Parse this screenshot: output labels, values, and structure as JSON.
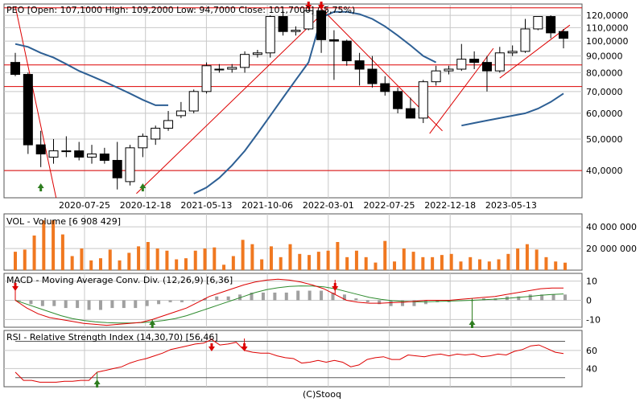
{
  "footer": "(C)Stooq",
  "colors": {
    "frame": "#555555",
    "grid": "#c8c8c8",
    "trend_red": "#dd0000",
    "ma_blue": "#2d5f94",
    "candle_up_fill": "#ffffff",
    "candle_down_fill": "#000000",
    "volume_bar": "#f07820",
    "macd_hist": "#a0a0a0",
    "macd_line": "#dd0000",
    "signal_line": "#2e8b2e",
    "rsi_line": "#dd0000",
    "rsi_band": "#5a5a5a",
    "arrow_up": "#2e7d1f",
    "arrow_down": "#dd0000"
  },
  "chart_data": [
    {
      "id": "price",
      "type": "candlestick",
      "legend": "PEO [Open: 107,1000  High: 109,2000  Low: 94,7000  Close: 101,7000] (-5,75%)",
      "scale": "log",
      "ylim": [
        33,
        130
      ],
      "ytick_labels": [
        "40,0000",
        "50,0000",
        "60,0000",
        "70,0000",
        "80,0000",
        "90,0000",
        "100,0000",
        "110,0000",
        "120,0000"
      ],
      "ytick_values": [
        40,
        50,
        60,
        70,
        80,
        90,
        100,
        110,
        120
      ],
      "xtick_labels": [
        "2020-07-25",
        "2020-12-18",
        "2021-05-13",
        "2021-10-06",
        "2022-03-01",
        "2022-07-25",
        "2022-12-18",
        "2023-05-13"
      ],
      "candles": [
        {
          "o": 86,
          "h": 92,
          "l": 78,
          "c": 79
        },
        {
          "o": 79,
          "h": 80,
          "l": 45,
          "c": 48
        },
        {
          "o": 48,
          "h": 53,
          "l": 41,
          "c": 45
        },
        {
          "o": 44,
          "h": 50,
          "l": 42,
          "c": 46
        },
        {
          "o": 46,
          "h": 51,
          "l": 44,
          "c": 46
        },
        {
          "o": 46,
          "h": 49,
          "l": 43,
          "c": 44
        },
        {
          "o": 44,
          "h": 48,
          "l": 42,
          "c": 45
        },
        {
          "o": 45,
          "h": 47,
          "l": 42,
          "c": 43
        },
        {
          "o": 43,
          "h": 49,
          "l": 35,
          "c": 38
        },
        {
          "o": 37,
          "h": 48,
          "l": 36,
          "c": 47
        },
        {
          "o": 47,
          "h": 52,
          "l": 44,
          "c": 51
        },
        {
          "o": 50,
          "h": 55,
          "l": 48,
          "c": 54
        },
        {
          "o": 54,
          "h": 61,
          "l": 53,
          "c": 57
        },
        {
          "o": 59,
          "h": 65,
          "l": 58,
          "c": 61
        },
        {
          "o": 61,
          "h": 71,
          "l": 60,
          "c": 70
        },
        {
          "o": 70,
          "h": 86,
          "l": 69,
          "c": 84
        },
        {
          "o": 82,
          "h": 85,
          "l": 80,
          "c": 82
        },
        {
          "o": 82,
          "h": 85,
          "l": 80,
          "c": 83
        },
        {
          "o": 83,
          "h": 93,
          "l": 80,
          "c": 91
        },
        {
          "o": 91,
          "h": 94,
          "l": 89,
          "c": 92
        },
        {
          "o": 92,
          "h": 120,
          "l": 89,
          "c": 119
        },
        {
          "o": 119,
          "h": 124,
          "l": 104,
          "c": 107
        },
        {
          "o": 107,
          "h": 111,
          "l": 104,
          "c": 108
        },
        {
          "o": 109,
          "h": 125,
          "l": 108,
          "c": 124
        },
        {
          "o": 124,
          "h": 126,
          "l": 92,
          "c": 101
        },
        {
          "o": 101,
          "h": 108,
          "l": 76,
          "c": 100
        },
        {
          "o": 100,
          "h": 101,
          "l": 84,
          "c": 87
        },
        {
          "o": 87,
          "h": 92,
          "l": 73,
          "c": 82
        },
        {
          "o": 82,
          "h": 90,
          "l": 72,
          "c": 74
        },
        {
          "o": 74,
          "h": 78,
          "l": 68,
          "c": 70
        },
        {
          "o": 70,
          "h": 72,
          "l": 60,
          "c": 62
        },
        {
          "o": 62,
          "h": 67,
          "l": 58,
          "c": 58
        },
        {
          "o": 58,
          "h": 76,
          "l": 56,
          "c": 75
        },
        {
          "o": 75,
          "h": 84,
          "l": 73,
          "c": 81
        },
        {
          "o": 81,
          "h": 84,
          "l": 79,
          "c": 82
        },
        {
          "o": 82,
          "h": 98,
          "l": 81,
          "c": 88
        },
        {
          "o": 88,
          "h": 93,
          "l": 82,
          "c": 86
        },
        {
          "o": 86,
          "h": 90,
          "l": 70,
          "c": 81
        },
        {
          "o": 81,
          "h": 96,
          "l": 80,
          "c": 92
        },
        {
          "o": 92,
          "h": 97,
          "l": 90,
          "c": 93
        },
        {
          "o": 93,
          "h": 117,
          "l": 92,
          "c": 109
        },
        {
          "o": 109,
          "h": 119,
          "l": 108,
          "c": 119
        },
        {
          "o": 119,
          "h": 120,
          "l": 102,
          "c": 106
        },
        {
          "o": 107,
          "h": 109,
          "l": 95,
          "c": 102
        }
      ],
      "moving_average": [
        {
          "i": 0,
          "v": 98
        },
        {
          "i": 1,
          "v": 96
        },
        {
          "i": 2,
          "v": 92
        },
        {
          "i": 3,
          "v": 89
        },
        {
          "i": 4,
          "v": 85
        },
        {
          "i": 5,
          "v": 81
        },
        {
          "i": 6,
          "v": 78
        },
        {
          "i": 7,
          "v": 75
        },
        {
          "i": 8,
          "v": 72
        },
        {
          "i": 9,
          "v": 69
        },
        {
          "i": 10,
          "v": 66
        },
        {
          "i": 11,
          "v": 63.5
        },
        {
          "i": 12,
          "v": 63.5
        },
        {
          "i": 14,
          "v": 34
        },
        {
          "i": 15,
          "v": 35.5
        },
        {
          "i": 16,
          "v": 38
        },
        {
          "i": 17,
          "v": 41.5
        },
        {
          "i": 18,
          "v": 46
        },
        {
          "i": 19,
          "v": 52
        },
        {
          "i": 20,
          "v": 59
        },
        {
          "i": 21,
          "v": 67
        },
        {
          "i": 22,
          "v": 76
        },
        {
          "i": 23,
          "v": 86
        },
        {
          "i": 24,
          "v": 118
        },
        {
          "i": 25,
          "v": 123
        },
        {
          "i": 26,
          "v": 123
        },
        {
          "i": 27,
          "v": 121
        },
        {
          "i": 28,
          "v": 117
        },
        {
          "i": 29,
          "v": 111
        },
        {
          "i": 30,
          "v": 104
        },
        {
          "i": 31,
          "v": 97
        },
        {
          "i": 32,
          "v": 90
        },
        {
          "i": 33,
          "v": 86
        },
        {
          "i": 35,
          "v": 55
        },
        {
          "i": 36,
          "v": 56
        },
        {
          "i": 37,
          "v": 57
        },
        {
          "i": 38,
          "v": 58
        },
        {
          "i": 39,
          "v": 59
        },
        {
          "i": 40,
          "v": 60
        },
        {
          "i": 41,
          "v": 62
        },
        {
          "i": 42,
          "v": 65
        },
        {
          "i": 43,
          "v": 69
        }
      ],
      "horizontal_lines": [
        126.5,
        84.5,
        72.5,
        40
      ],
      "arrows": [
        {
          "i": 2,
          "dir": "up"
        },
        {
          "i": 10,
          "dir": "up"
        },
        {
          "i": 23,
          "dir": "down"
        },
        {
          "i": 24,
          "dir": "down"
        }
      ]
    },
    {
      "id": "volume",
      "type": "bar",
      "legend": "VOL - Volume [6 908 429]",
      "ylim": [
        0,
        52000000
      ],
      "ytick_labels": [
        "20 000 000",
        "40 000 000"
      ],
      "ytick_values": [
        20000000,
        40000000
      ],
      "values": [
        17000000,
        19000000,
        32000000,
        46000000,
        46000000,
        33000000,
        13000000,
        20000000,
        9000000,
        11000000,
        19000000,
        9000000,
        16000000,
        22000000,
        26000000,
        20000000,
        18000000,
        10000000,
        11000000,
        18000000,
        20000000,
        21000000,
        5000000,
        13000000,
        28000000,
        24000000,
        10000000,
        22000000,
        12000000,
        24000000,
        15000000,
        14000000,
        17000000,
        18000000,
        26000000,
        12000000,
        18000000,
        12000000,
        7000000,
        27000000,
        8000000,
        20000000,
        17000000,
        12000000,
        12000000,
        14000000,
        15000000,
        8000000,
        12000000,
        10000000,
        8000000,
        10000000,
        15000000,
        20000000,
        24000000,
        19000000,
        12000000,
        8000000,
        6908429
      ]
    },
    {
      "id": "macd",
      "type": "line",
      "legend": "MACD - Moving Average Conv. Div. (12,26,9) [6,36]",
      "ylim": [
        -14,
        14
      ],
      "ytick_labels": [
        "-10",
        "0",
        "10"
      ],
      "ytick_values": [
        -10,
        0,
        10
      ],
      "histogram": [
        0,
        -2,
        -3,
        -3,
        -4,
        -4,
        -5,
        -5,
        -4,
        -4,
        -4,
        -3,
        -2,
        -1,
        -1,
        0,
        1,
        2,
        2,
        3,
        4,
        4,
        4,
        4,
        5,
        5,
        5,
        4,
        3,
        1,
        -1,
        -2,
        -3,
        -3,
        -3,
        -2,
        -1,
        -1,
        0,
        0,
        1,
        1,
        2,
        2,
        3,
        3,
        3,
        3
      ],
      "macd_line": [
        0,
        -4,
        -7,
        -9,
        -10,
        -11,
        -12,
        -12.5,
        -13,
        -12.5,
        -12,
        -11.5,
        -10,
        -8,
        -6,
        -4,
        -1,
        2,
        4,
        6,
        8,
        9.5,
        10.5,
        11,
        10.5,
        9.5,
        8,
        6,
        3,
        0,
        -1,
        -1.5,
        -1.5,
        -1.2,
        -1,
        -0.5,
        0,
        0,
        0,
        0.5,
        1,
        1.5,
        2,
        3,
        4,
        5,
        6,
        6.4,
        6.36
      ],
      "signal_line": [
        0,
        -2,
        -4,
        -6,
        -8,
        -9.5,
        -10.5,
        -11.2,
        -11.6,
        -11.8,
        -11.8,
        -11.6,
        -11.2,
        -10.5,
        -9.5,
        -8,
        -6,
        -4,
        -2,
        0,
        2,
        4,
        5.5,
        6.5,
        7.2,
        7.5,
        7.4,
        7,
        6,
        4.5,
        3,
        1.5,
        0.5,
        -0.2,
        -0.6,
        -0.8,
        -0.8,
        -0.6,
        -0.4,
        -0.2,
        0,
        0.3,
        0.6,
        1,
        1.5,
        2,
        2.6,
        3,
        3.3
      ]
    },
    {
      "id": "rsi",
      "type": "line",
      "legend": "RSI - Relative Strength Index (14,30,70) [56,46]",
      "ylim": [
        20,
        82
      ],
      "ytick_labels": [
        "40",
        "60"
      ],
      "ytick_values": [
        40,
        60
      ],
      "bands": [
        30,
        70
      ],
      "values": [
        36,
        27,
        27,
        25,
        25,
        25,
        26,
        26,
        27,
        27,
        36,
        38,
        40,
        42,
        46,
        49,
        51,
        54,
        57,
        61,
        63,
        65,
        67,
        68,
        72,
        66,
        67,
        69,
        60,
        58,
        57,
        57,
        54,
        52,
        51,
        46,
        47,
        49,
        47,
        49,
        47,
        42,
        44,
        50,
        52,
        53,
        50,
        50,
        55,
        54,
        53,
        55,
        56,
        54,
        56,
        55,
        56,
        53,
        54,
        56,
        55,
        59,
        61,
        65,
        66,
        62,
        58,
        56.46
      ]
    }
  ],
  "rsi_arrows": [
    {
      "i": 10,
      "dir": "up"
    },
    {
      "i": 24,
      "dir": "down"
    },
    {
      "i": 28,
      "dir": "down"
    }
  ],
  "macd_arrows": [
    {
      "i": 0,
      "dir": "down"
    },
    {
      "i": 12,
      "dir": "up"
    },
    {
      "i": 28,
      "dir": "down"
    },
    {
      "i": 40,
      "dir": "up"
    }
  ]
}
